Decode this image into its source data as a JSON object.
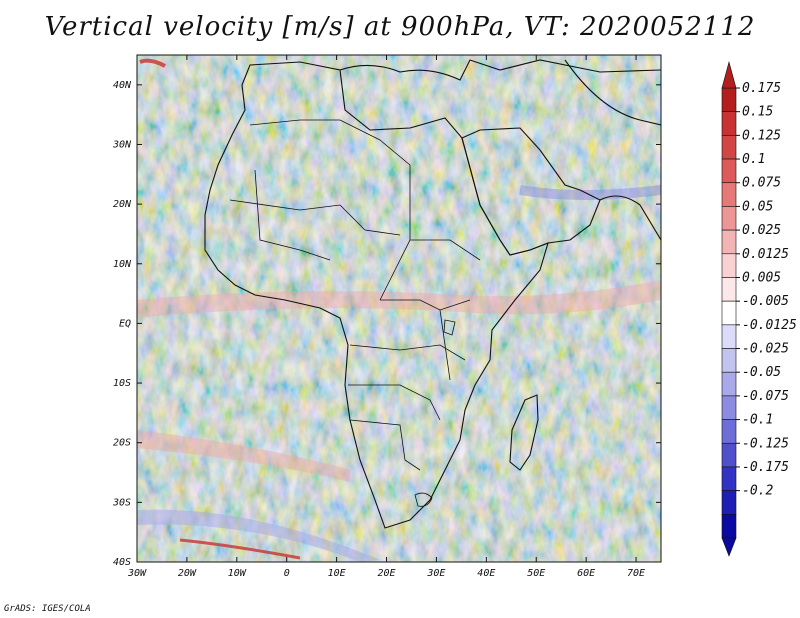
{
  "title": "Vertical velocity [m/s] at 900hPa, VT: 2020052112",
  "credit": "GrADS: IGES/COLA",
  "map": {
    "region": "Africa and Arabian Peninsula",
    "variable": "vertical velocity",
    "units": "m/s",
    "level": "900hPa",
    "valid_time": "2020052112",
    "lon_range": [
      -30,
      75
    ],
    "lat_range": [
      -40,
      45
    ]
  },
  "axes": {
    "x_ticks": [
      {
        "value": -30,
        "label": "30W"
      },
      {
        "value": -20,
        "label": "20W"
      },
      {
        "value": -10,
        "label": "10W"
      },
      {
        "value": 0,
        "label": "0"
      },
      {
        "value": 10,
        "label": "10E"
      },
      {
        "value": 20,
        "label": "20E"
      },
      {
        "value": 30,
        "label": "30E"
      },
      {
        "value": 40,
        "label": "40E"
      },
      {
        "value": 50,
        "label": "50E"
      },
      {
        "value": 60,
        "label": "60E"
      },
      {
        "value": 70,
        "label": "70E"
      }
    ],
    "y_ticks": [
      {
        "value": 40,
        "label": "40N"
      },
      {
        "value": 30,
        "label": "30N"
      },
      {
        "value": 20,
        "label": "20N"
      },
      {
        "value": 10,
        "label": "10N"
      },
      {
        "value": 0,
        "label": "EQ"
      },
      {
        "value": -10,
        "label": "10S"
      },
      {
        "value": -20,
        "label": "20S"
      },
      {
        "value": -30,
        "label": "30S"
      },
      {
        "value": -40,
        "label": "40S"
      }
    ]
  },
  "colorbar": {
    "levels": [
      "0.175",
      "0.15",
      "0.125",
      "0.1",
      "0.075",
      "0.05",
      "0.025",
      "0.0125",
      "0.005",
      "-0.005",
      "-0.0125",
      "-0.025",
      "-0.05",
      "-0.075",
      "-0.1",
      "-0.125",
      "-0.175",
      "-0.2"
    ],
    "colors": [
      "#b41e1e",
      "#c83232",
      "#d24646",
      "#dc5a5a",
      "#e67878",
      "#ec9696",
      "#f2b4b4",
      "#f8d2d2",
      "#fce8e8",
      "#ffffff",
      "#dcdcf8",
      "#c3c3f0",
      "#aaaaeb",
      "#8c8ce1",
      "#6e6ed7",
      "#5050cd",
      "#3232c3",
      "#1e1eb4",
      "#0a0aa0"
    ]
  }
}
